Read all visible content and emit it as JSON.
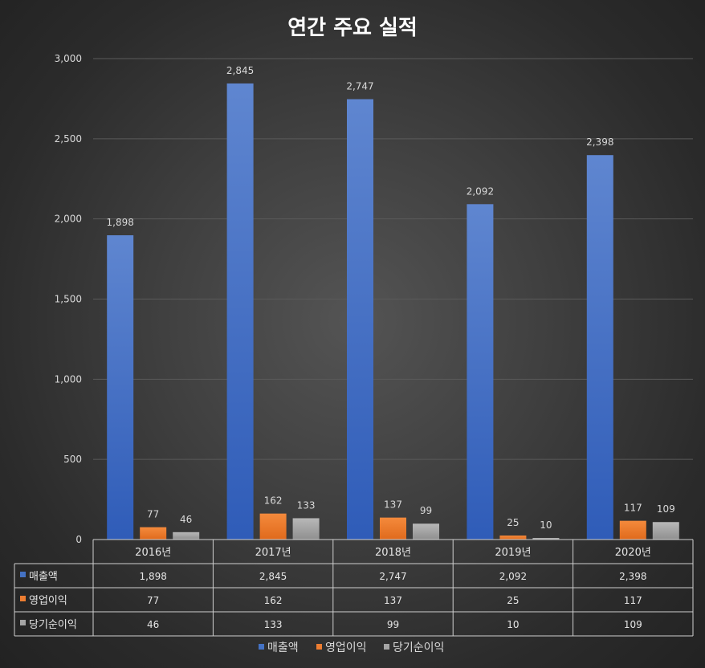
{
  "chart_data": {
    "type": "bar",
    "title": "연간 주요 실적",
    "categories": [
      "2016년",
      "2017년",
      "2018년",
      "2019년",
      "2020년"
    ],
    "series": [
      {
        "name": "매출액",
        "color": "#4472c4",
        "values": [
          1898,
          2845,
          2747,
          2092,
          2398
        ],
        "labels": [
          "1,898",
          "2,845",
          "2,747",
          "2,092",
          "2,398"
        ]
      },
      {
        "name": "영업이익",
        "color": "#ed7d31",
        "values": [
          77,
          162,
          137,
          25,
          117
        ],
        "labels": [
          "77",
          "162",
          "137",
          "25",
          "117"
        ]
      },
      {
        "name": "당기순이익",
        "color": "#a5a5a5",
        "values": [
          46,
          133,
          99,
          10,
          109
        ],
        "labels": [
          "46",
          "133",
          "99",
          "10",
          "109"
        ]
      }
    ],
    "ylim": [
      0,
      3000
    ],
    "yticks": [
      0,
      500,
      1000,
      1500,
      2000,
      2500,
      3000
    ],
    "ytick_labels": [
      "0",
      "500",
      "1,000",
      "1,500",
      "2,000",
      "2,500",
      "3,000"
    ],
    "xlabel": "",
    "ylabel": "",
    "grid": true,
    "data_table": true,
    "legend_position": "bottom"
  }
}
